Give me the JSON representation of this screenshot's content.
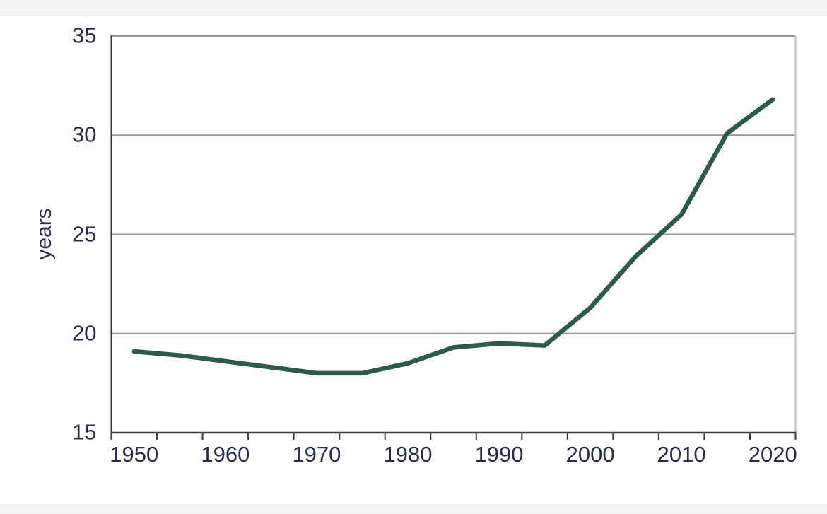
{
  "chart_data": {
    "type": "line",
    "title": "",
    "xlabel": "",
    "ylabel": "years",
    "x": [
      1950,
      1955,
      1960,
      1965,
      1970,
      1975,
      1980,
      1985,
      1990,
      1995,
      2000,
      2005,
      2010,
      2015,
      2020
    ],
    "values": [
      19.1,
      18.9,
      18.6,
      18.3,
      18.0,
      18.0,
      18.5,
      19.3,
      19.5,
      19.4,
      21.3,
      23.9,
      26.0,
      30.1,
      31.8
    ],
    "ylim": [
      15,
      35
    ],
    "yticks": [
      15,
      20,
      25,
      30,
      35
    ],
    "xtick_labels": [
      "1950",
      "1960",
      "1970",
      "1980",
      "1990",
      "2000",
      "2010",
      "2020"
    ],
    "x_minor_tick_step_years": 5,
    "grid": "horizontal gridlines at 20, 25, 30, 35; ticks between 5-year categories",
    "legend": "none"
  },
  "colors": {
    "line": "#2e5a48",
    "text": "#2b2b4c",
    "grid": "#969696",
    "axis": "#3c3c3c",
    "right_spine": "#c8c8c8",
    "band": "#f4f4f4"
  }
}
